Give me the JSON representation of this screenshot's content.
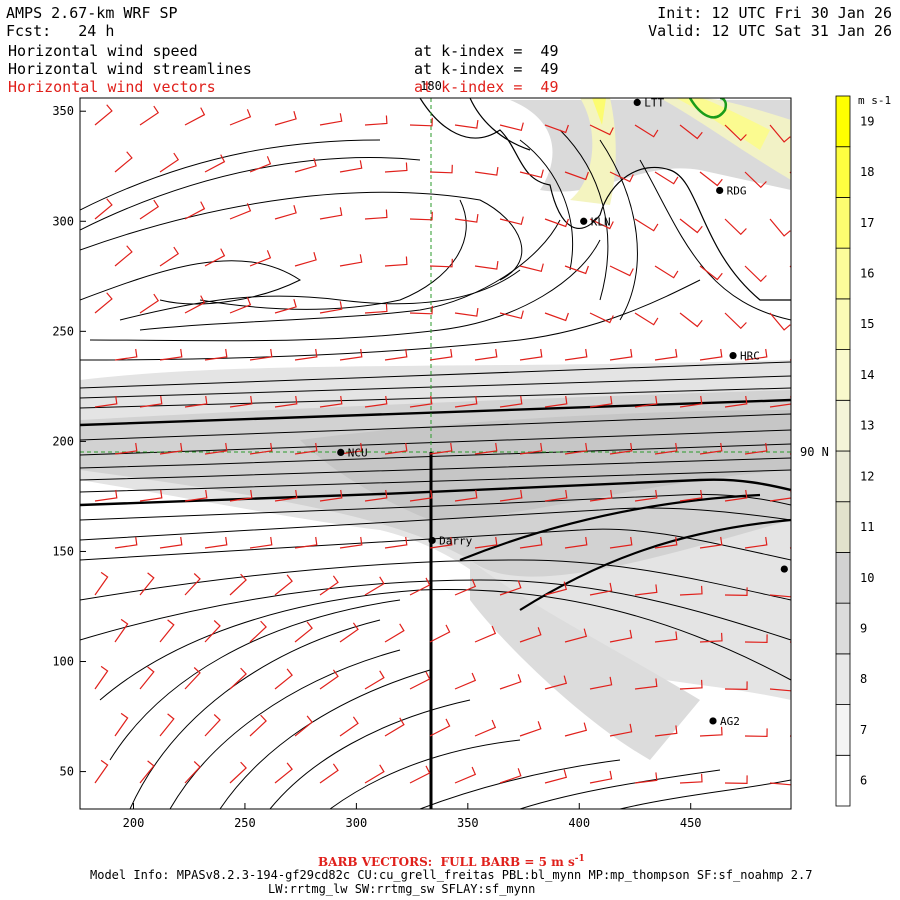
{
  "header": {
    "model": "AMPS 2.67-km WRF SP",
    "forecast": "Fcst:   24 h",
    "init": "Init: 12 UTC Fri 30 Jan 26",
    "valid": "Valid: 12 UTC Sat 31 Jan 26"
  },
  "fields": [
    {
      "name": "Horizontal wind speed",
      "level": "at k-index =  49",
      "color": "#000000"
    },
    {
      "name": "Horizontal wind streamlines",
      "level": "at k-index =  49",
      "color": "#000000"
    },
    {
      "name": "Horizontal wind vectors",
      "level": "at k-index =  49",
      "color": "#e0201b"
    }
  ],
  "chart_data": {
    "type": "map",
    "x_ticks": [
      "200",
      "250",
      "300",
      "350",
      "400",
      "450"
    ],
    "y_ticks": [
      "350",
      "300",
      "250",
      "200",
      "150",
      "100",
      "50"
    ],
    "xlim": [
      176,
      495
    ],
    "ylim": [
      33,
      356
    ],
    "meridian_label": "180",
    "parallel_label": "90 N",
    "stations": [
      {
        "id": "LTT",
        "x": 426,
        "y": 354
      },
      {
        "id": "RDG",
        "x": 463,
        "y": 314
      },
      {
        "id": "KLN",
        "x": 402,
        "y": 300
      },
      {
        "id": "HRC",
        "x": 469,
        "y": 239
      },
      {
        "id": "NCU",
        "x": 293,
        "y": 195
      },
      {
        "id": "Darry",
        "x": 334,
        "y": 155
      },
      {
        "id": "",
        "x": 492,
        "y": 142
      },
      {
        "id": "AG2",
        "x": 460,
        "y": 73
      }
    ],
    "colorbar": {
      "unit": "m s-1",
      "levels": [
        6,
        7,
        8,
        9,
        10,
        11,
        12,
        13,
        14,
        15,
        16,
        17,
        18,
        19
      ],
      "colors": [
        "#ffffff",
        "#f4f4f4",
        "#e8e8e8",
        "#dcdcdc",
        "#d2d2d2",
        "#e2e2cc",
        "#ebebd6",
        "#f4f4d8",
        "#f9f9cc",
        "#fbfbb6",
        "#fcfc9a",
        "#fdfd70",
        "#fefe40",
        "#ffff00"
      ]
    }
  },
  "footer": {
    "barb_note": "BARB VECTORS:  FULL BARB = 5 m s",
    "barb_exp": "-1",
    "model_info": "Model Info: MPASv8.2.3-194-gf29cd82c CU:cu_grell_freitas PBL:bl_mynn MP:mp_thompson SF:sf_noahmp 2.7",
    "model_info2": "LW:rrtmg_lw SW:rrtmg_sw SFLAY:sf_mynn"
  }
}
